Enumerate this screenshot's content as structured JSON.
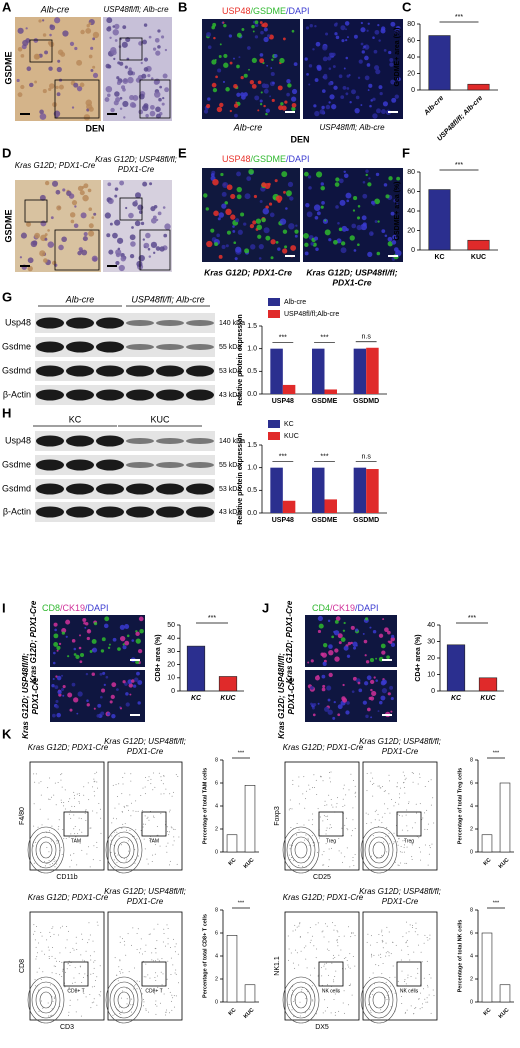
{
  "figure": {
    "A": {
      "label": "A",
      "columns": [
        "Alb-cre",
        "USP48fl/fl; Alb-cre"
      ],
      "row": "GSDME",
      "footer": "DEN"
    },
    "B": {
      "label": "B",
      "stain": [
        "USP48",
        "/GSDME",
        "/DAPI"
      ],
      "columns": [
        "Alb-cre",
        "USP48fl/fl; Alb-cre"
      ],
      "footer": "DEN"
    },
    "C": {
      "label": "C"
    },
    "D": {
      "label": "D",
      "columns": [
        [
          "Kras G12D; PDX1-Cre"
        ],
        [
          "Kras G12D; USP48fl/fl;",
          "PDX1-Cre"
        ]
      ],
      "row": "GSDME"
    },
    "E": {
      "label": "E",
      "stain": [
        "USP48",
        "/GSDME",
        "/DAPI"
      ],
      "columns": [
        [
          "Kras G12D; PDX1-Cre"
        ],
        [
          "Kras G12D; USP48fl/fl;",
          "PDX1-Cre"
        ]
      ]
    },
    "F": {
      "label": "F"
    },
    "G": {
      "label": "G",
      "groups": [
        "Alb-cre",
        "USP48fl/fl; Alb-cre"
      ],
      "rows": [
        "Usp48",
        "Gsdme",
        "Gsdmd",
        "β-Actin"
      ],
      "sizes": [
        "140 kDa",
        "55 kDa",
        "53 kDa",
        "43 kDa"
      ]
    },
    "H": {
      "label": "H",
      "groups": [
        "KC",
        "KUC"
      ],
      "rows": [
        "Usp48",
        "Gsdme",
        "Gsdmd",
        "β-Actin"
      ],
      "sizes": [
        "140 kDa",
        "55 kDa",
        "53 kDa",
        "43 kDa"
      ]
    },
    "I": {
      "label": "I",
      "stain": [
        "CD8",
        "/CK19",
        "/DAPI"
      ],
      "rows": [
        [
          "Kras G12D; PDX1-Cre"
        ],
        [
          "Kras G12D; USP48fl/fl;",
          "PDX1-Cre"
        ]
      ]
    },
    "J": {
      "label": "J",
      "stain": [
        "CD4",
        "/CK19",
        "/DAPI"
      ],
      "rows": [
        [
          "Kras G12D; PDX1-Cre"
        ],
        [
          "Kras G12D; USP48fl/fl;",
          "PDX1-Cre"
        ]
      ]
    },
    "K": {
      "label": "K",
      "plots": [
        {
          "columns": [
            [
              "Kras G12D; PDX1-Cre"
            ],
            [
              "Kras G12D; USP48fl/fl;",
              "PDX1-Cre"
            ]
          ],
          "xaxis": "CD11b",
          "yaxis": "F4/80",
          "gate": "TAM"
        },
        {
          "columns": [
            [
              "Kras G12D; PDX1-Cre"
            ],
            [
              "Kras G12D; USP48fl/fl;",
              "PDX1-Cre"
            ]
          ],
          "xaxis": "CD25",
          "yaxis": "Foxp3",
          "gate": "Treg"
        },
        {
          "columns": [
            [
              "Kras G12D; PDX1-Cre"
            ],
            [
              "Kras G12D; USP48fl/fl;",
              "PDX1-Cre"
            ]
          ],
          "xaxis": "CD3",
          "yaxis": "CD8",
          "gate": "CD8+ T"
        },
        {
          "columns": [
            [
              "Kras G12D; PDX1-Cre"
            ],
            [
              "Kras G12D; USP48fl/fl;",
              "PDX1-Cre"
            ]
          ],
          "xaxis": "DX5",
          "yaxis": "NK1.1",
          "gate": "NK cells"
        }
      ]
    }
  },
  "chart_data": [
    {
      "type": "bar",
      "ylabel": "GSDME+ area (%)",
      "categories": [
        "Alb-cre",
        "USP48fl/fl; Alb-cre"
      ],
      "values": [
        66,
        7
      ],
      "colors": [
        "#2b2f8f",
        "#e02a2a"
      ],
      "ylim": [
        0,
        80
      ],
      "yticks": [
        0,
        20,
        40,
        60,
        80
      ],
      "annotations": [
        "***"
      ]
    },
    {
      "type": "bar",
      "ylabel": "GSDME+ area (%)",
      "categories": [
        "KC",
        "KUC"
      ],
      "values": [
        62,
        10
      ],
      "colors": [
        "#2b2f8f",
        "#e02a2a"
      ],
      "ylim": [
        0,
        80
      ],
      "yticks": [
        0,
        20,
        40,
        60,
        80
      ],
      "annotations": [
        "***"
      ]
    },
    {
      "type": "bar",
      "ylabel": "Relative protein expression",
      "categories": [
        "USP48",
        "GSDME",
        "GSDMD"
      ],
      "series": [
        {
          "name": "Alb-cre",
          "color": "#2b2f8f",
          "values": [
            1,
            1,
            1
          ]
        },
        {
          "name": "USP48fl/fl;Alb-cre",
          "color": "#e02a2a",
          "values": [
            0.2,
            0.1,
            1.02
          ]
        }
      ],
      "ylim": [
        0,
        1.5
      ],
      "yticks": [
        {
          "value": 0,
          "label": "0.0"
        },
        0.5,
        {
          "value": 1,
          "label": "1.0"
        },
        1.5
      ],
      "annotations": [
        "***",
        "***",
        "n.s"
      ]
    },
    {
      "type": "bar",
      "ylabel": "Relative protein expression",
      "categories": [
        "USP48",
        "GSDME",
        "GSDMD"
      ],
      "series": [
        {
          "name": "KC",
          "color": "#2b2f8f",
          "values": [
            1,
            1,
            1
          ]
        },
        {
          "name": "KUC",
          "color": "#e02a2a",
          "values": [
            0.27,
            0.3,
            0.97
          ]
        }
      ],
      "ylim": [
        0,
        1.5
      ],
      "yticks": [
        {
          "value": 0,
          "label": "0.0"
        },
        0.5,
        {
          "value": 1,
          "label": "1.0"
        },
        1.5
      ],
      "annotations": [
        "***",
        "***",
        "n.s"
      ]
    },
    {
      "type": "bar",
      "ylabel": "CD8+ area (%)",
      "categories": [
        "KC",
        "KUC"
      ],
      "values": [
        34,
        11
      ],
      "colors": [
        "#2b2f8f",
        "#e02a2a"
      ],
      "ylim": [
        0,
        50
      ],
      "yticks": [
        0,
        10,
        20,
        30,
        40,
        50
      ],
      "annotations": [
        "***"
      ]
    },
    {
      "type": "bar",
      "ylabel": "CD4+ area (%)",
      "categories": [
        "KC",
        "KUC"
      ],
      "values": [
        28,
        8
      ],
      "colors": [
        "#2b2f8f",
        "#e02a2a"
      ],
      "ylim": [
        0,
        40
      ],
      "yticks": [
        0,
        10,
        20,
        30,
        40
      ],
      "annotations": [
        "***"
      ]
    },
    {
      "type": "bar",
      "ylabel": "Percentage of total TAM cells",
      "categories": [
        "KC",
        "KUC"
      ],
      "values": [
        1.5,
        5.8
      ],
      "colors": [
        "#ffffff",
        "#ffffff"
      ],
      "ylim": [
        0,
        8
      ],
      "yticks": [
        0,
        2,
        4,
        6,
        8
      ],
      "annotations": [
        "***"
      ]
    },
    {
      "type": "bar",
      "ylabel": "Percentage of total Treg cells",
      "categories": [
        "KC",
        "KUC"
      ],
      "values": [
        1.5,
        6
      ],
      "colors": [
        "#ffffff",
        "#ffffff"
      ],
      "ylim": [
        0,
        8
      ],
      "yticks": [
        0,
        2,
        4,
        6,
        8
      ],
      "annotations": [
        "***"
      ]
    },
    {
      "type": "bar",
      "ylabel": "Percentage of total CD8+ T cells",
      "categories": [
        "KC",
        "KUC"
      ],
      "values": [
        5.8,
        1.5
      ],
      "colors": [
        "#ffffff",
        "#ffffff"
      ],
      "ylim": [
        0,
        8
      ],
      "yticks": [
        0,
        2,
        4,
        6,
        8
      ],
      "annotations": [
        "***"
      ]
    },
    {
      "type": "bar",
      "ylabel": "Percentage of total NK cells",
      "categories": [
        "KC",
        "KUC"
      ],
      "values": [
        6,
        1.5
      ],
      "colors": [
        "#ffffff",
        "#ffffff"
      ],
      "ylim": [
        0,
        8
      ],
      "yticks": [
        0,
        2,
        4,
        6,
        8
      ],
      "annotations": [
        "***"
      ]
    }
  ]
}
